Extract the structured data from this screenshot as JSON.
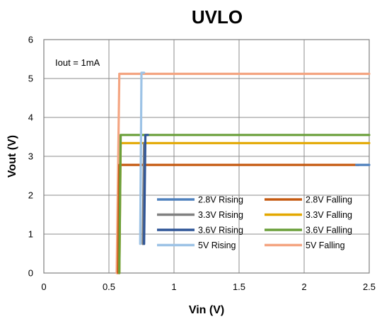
{
  "chart_data": {
    "type": "line",
    "title": "UVLO",
    "xlabel": "Vin (V)",
    "ylabel": "Vout (V)",
    "xlim": [
      0,
      2.5
    ],
    "ylim": [
      0,
      6
    ],
    "xticks": [
      "0",
      "0.5",
      "1",
      "1.5",
      "2",
      "2.5"
    ],
    "yticks": [
      "0",
      "1",
      "2",
      "3",
      "4",
      "5",
      "6"
    ],
    "grid": true,
    "legend_position": "bottom-right",
    "annotation": "Iout = 1mA",
    "series": [
      {
        "name": "2.8V Rising",
        "color": "#4f81bd",
        "x": [
          2.4,
          2.5
        ],
        "y": [
          2.78,
          2.78
        ]
      },
      {
        "name": "2.8V Falling",
        "color": "#c55a11",
        "x": [
          0.57,
          0.58,
          2.42
        ],
        "y": [
          0,
          2.78,
          2.78
        ]
      },
      {
        "name": "3.3V Rising",
        "color": "#808080",
        "x": [
          0.76,
          0.77,
          0.78
        ],
        "y": [
          0.75,
          3.34,
          3.34
        ]
      },
      {
        "name": "3.3V Falling",
        "color": "#e3a800",
        "x": [
          0.58,
          0.59,
          2.5
        ],
        "y": [
          0,
          3.34,
          3.34
        ]
      },
      {
        "name": "3.6V Rising",
        "color": "#2f5597",
        "x": [
          0.77,
          0.78,
          0.8
        ],
        "y": [
          0.75,
          3.55,
          3.55
        ]
      },
      {
        "name": "3.6V Falling",
        "color": "#6a9f3a",
        "x": [
          0.58,
          0.59,
          2.5
        ],
        "y": [
          0,
          3.55,
          3.55
        ]
      },
      {
        "name": "5V Rising",
        "color": "#9dc3e6",
        "x": [
          0.74,
          0.75,
          0.77
        ],
        "y": [
          0.75,
          5.15,
          5.15
        ]
      },
      {
        "name": "5V Falling",
        "color": "#f4a582",
        "x": [
          0.56,
          0.58,
          2.5
        ],
        "y": [
          0,
          5.12,
          5.12
        ]
      }
    ]
  }
}
